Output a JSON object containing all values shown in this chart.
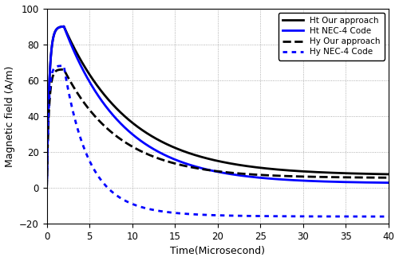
{
  "title": "",
  "xlabel": "Time(Microsecond)",
  "ylabel": "Magnetic field (A/m)",
  "xlim": [
    0,
    40
  ],
  "ylim": [
    -20,
    100
  ],
  "yticks": [
    -20,
    0,
    20,
    40,
    60,
    80,
    100
  ],
  "xticks": [
    0,
    5,
    10,
    15,
    20,
    25,
    30,
    35,
    40
  ],
  "legend": [
    {
      "label": "Ht Our approach",
      "color": "black",
      "linestyle": "solid",
      "linewidth": 2.0
    },
    {
      "label": "Ht NEC-4 Code",
      "color": "blue",
      "linestyle": "solid",
      "linewidth": 2.0
    },
    {
      "label": "Hy Our approach",
      "color": "black",
      "linestyle": "dashed",
      "linewidth": 2.0
    },
    {
      "label": "Hy NEC-4 Code",
      "color": "blue",
      "linestyle": "dotted",
      "linewidth": 2.0
    }
  ],
  "background_color": "#ffffff",
  "grid_color": "#999999",
  "grid_linestyle": ":"
}
